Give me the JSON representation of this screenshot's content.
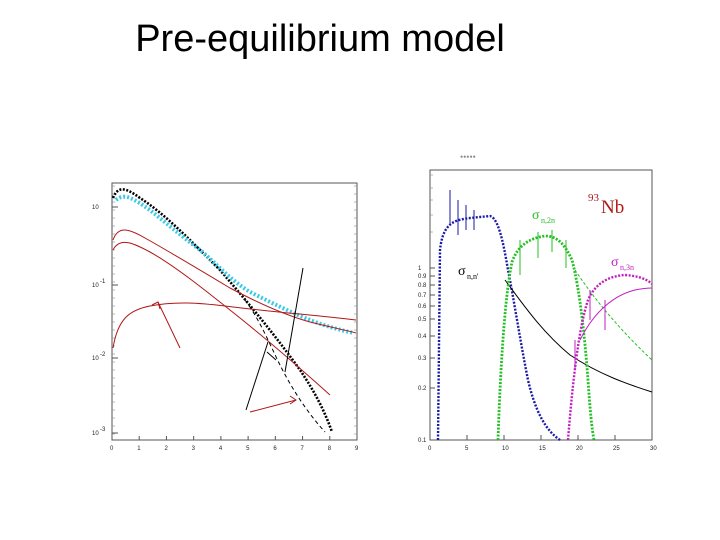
{
  "slide": {
    "title": "Pre-equilibrium model"
  },
  "left_plot": {
    "x_ticks": [
      "0",
      "1",
      "2",
      "3",
      "4",
      "5",
      "6",
      "7",
      "8",
      "9"
    ],
    "y_ticks": [
      "10",
      "10",
      "10",
      "10"
    ],
    "y_exps": [
      "",
      "-1",
      "-2",
      "-3"
    ]
  },
  "right_plot": {
    "nucleus_mass": "93",
    "nucleus_symbol": "Nb",
    "label_n_np": "σ",
    "label_n_np_sub": "n,n'",
    "label_n_2n": "σ",
    "label_n_2n_sub": "n,2n",
    "label_n_3n": "σ",
    "label_n_3n_sub": "n,3n",
    "x_ticks": [
      "0",
      "5",
      "10",
      "15",
      "20",
      "25",
      "30"
    ],
    "y_ticks": [
      "0.1",
      "0.2",
      "0.3",
      "0.4",
      "0.5",
      "0.6",
      "0.7",
      "0.8",
      "0.9",
      "1"
    ],
    "top_dots": "•••••"
  },
  "colors": {
    "black": "#000000",
    "cyan": "#3cc8e6",
    "red": "#b01818",
    "blue": "#1a1aa8",
    "green": "#22c022",
    "magenta": "#c020c0"
  }
}
